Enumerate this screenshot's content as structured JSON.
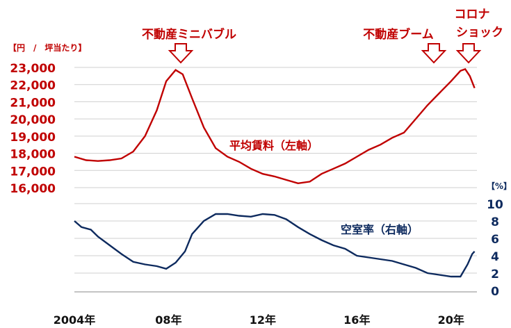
{
  "chart_data": {
    "type": "line",
    "grid": "horizontal",
    "left_axis": {
      "unit_label": "【円　/　坪当たり】",
      "ticks": [
        16000,
        17000,
        18000,
        19000,
        20000,
        21000,
        22000,
        23000
      ],
      "tick_labels": [
        "16,000",
        "17,000",
        "18,000",
        "19,000",
        "20,000",
        "21,000",
        "22,000",
        "23,000"
      ],
      "ylim": [
        16000,
        23000
      ],
      "color": "#c00000"
    },
    "right_axis": {
      "unit_label": "【%】",
      "ticks": [
        0,
        2,
        4,
        6,
        8,
        10
      ],
      "tick_labels": [
        "0",
        "2",
        "4",
        "6",
        "8",
        "10"
      ],
      "ylim": [
        0,
        10
      ],
      "color": "#0d2a5e"
    },
    "x_axis": {
      "ticks": [
        2004,
        2008,
        2012,
        2016,
        2020
      ],
      "tick_labels": [
        "2004年",
        "08年",
        "12年",
        "16年",
        "20年"
      ],
      "xlim": [
        2004,
        2021.1
      ]
    },
    "series": [
      {
        "name": "平均賃料（左軸）",
        "axis": "left",
        "color": "#c00000",
        "points": [
          [
            2004.0,
            17800
          ],
          [
            2004.5,
            17600
          ],
          [
            2005.0,
            17550
          ],
          [
            2005.5,
            17600
          ],
          [
            2006.0,
            17700
          ],
          [
            2006.5,
            18100
          ],
          [
            2007.0,
            19000
          ],
          [
            2007.5,
            20500
          ],
          [
            2007.9,
            22200
          ],
          [
            2008.3,
            22850
          ],
          [
            2008.6,
            22600
          ],
          [
            2009.0,
            21200
          ],
          [
            2009.5,
            19500
          ],
          [
            2010.0,
            18300
          ],
          [
            2010.5,
            17800
          ],
          [
            2011.0,
            17500
          ],
          [
            2011.5,
            17100
          ],
          [
            2012.0,
            16800
          ],
          [
            2012.5,
            16650
          ],
          [
            2013.0,
            16450
          ],
          [
            2013.5,
            16250
          ],
          [
            2014.0,
            16350
          ],
          [
            2014.5,
            16800
          ],
          [
            2015.0,
            17100
          ],
          [
            2015.5,
            17400
          ],
          [
            2016.0,
            17800
          ],
          [
            2016.5,
            18200
          ],
          [
            2017.0,
            18500
          ],
          [
            2017.5,
            18900
          ],
          [
            2018.0,
            19200
          ],
          [
            2018.5,
            20000
          ],
          [
            2019.0,
            20800
          ],
          [
            2019.5,
            21500
          ],
          [
            2020.0,
            22200
          ],
          [
            2020.4,
            22800
          ],
          [
            2020.6,
            22900
          ],
          [
            2020.8,
            22500
          ],
          [
            2021.0,
            21800
          ]
        ]
      },
      {
        "name": "空室率（右軸）",
        "axis": "right",
        "color": "#0d2a5e",
        "points": [
          [
            2004.0,
            8.0
          ],
          [
            2004.3,
            7.3
          ],
          [
            2004.7,
            7.0
          ],
          [
            2005.0,
            6.2
          ],
          [
            2005.5,
            5.2
          ],
          [
            2006.0,
            4.2
          ],
          [
            2006.5,
            3.3
          ],
          [
            2007.0,
            3.0
          ],
          [
            2007.5,
            2.8
          ],
          [
            2007.9,
            2.5
          ],
          [
            2008.3,
            3.2
          ],
          [
            2008.7,
            4.5
          ],
          [
            2009.0,
            6.5
          ],
          [
            2009.5,
            8.0
          ],
          [
            2010.0,
            8.8
          ],
          [
            2010.5,
            8.8
          ],
          [
            2011.0,
            8.6
          ],
          [
            2011.5,
            8.5
          ],
          [
            2012.0,
            8.8
          ],
          [
            2012.5,
            8.7
          ],
          [
            2013.0,
            8.2
          ],
          [
            2013.5,
            7.3
          ],
          [
            2014.0,
            6.5
          ],
          [
            2014.5,
            5.8
          ],
          [
            2015.0,
            5.2
          ],
          [
            2015.5,
            4.8
          ],
          [
            2016.0,
            4.0
          ],
          [
            2016.5,
            3.8
          ],
          [
            2017.0,
            3.6
          ],
          [
            2017.5,
            3.4
          ],
          [
            2018.0,
            3.0
          ],
          [
            2018.5,
            2.6
          ],
          [
            2019.0,
            2.0
          ],
          [
            2019.5,
            1.8
          ],
          [
            2020.0,
            1.6
          ],
          [
            2020.4,
            1.6
          ],
          [
            2020.7,
            3.0
          ],
          [
            2020.9,
            4.2
          ],
          [
            2021.0,
            4.5
          ]
        ]
      }
    ],
    "annotations": [
      {
        "text": "不動産ミニバブル",
        "x": 2008.3,
        "arrow": "down"
      },
      {
        "text": "不動産ブーム",
        "x": 2019.5,
        "arrow": "down"
      },
      {
        "text_lines": [
          "コロナ",
          "ショック"
        ],
        "x": 2020.6,
        "arrow": "down"
      }
    ]
  }
}
